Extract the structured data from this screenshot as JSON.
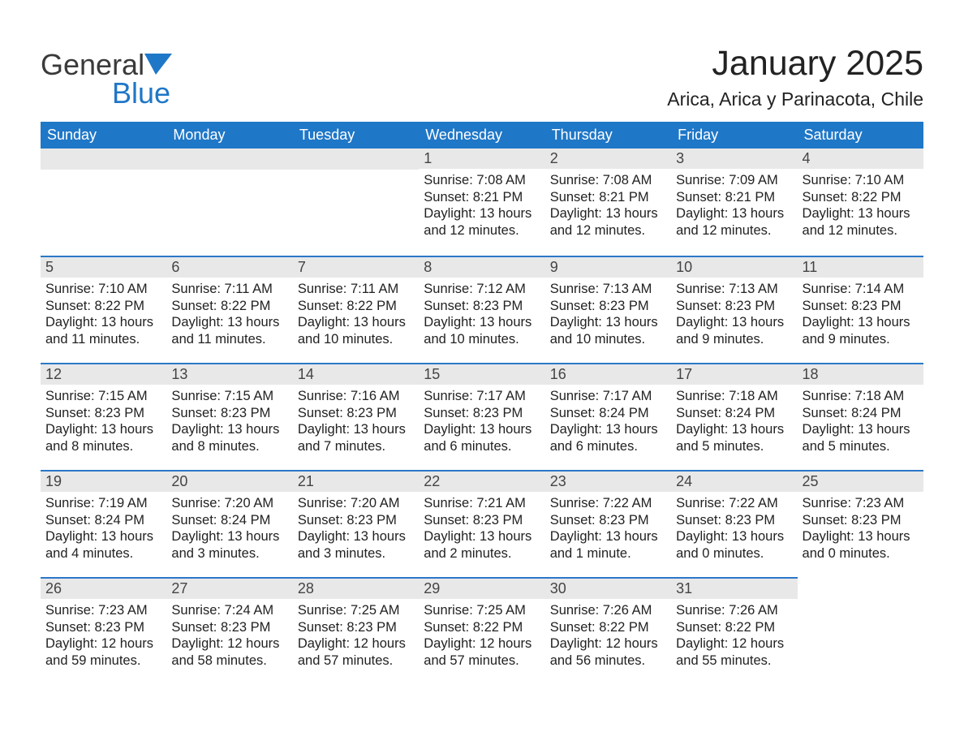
{
  "logo": {
    "main": "General",
    "sub": "Blue"
  },
  "title": "January 2025",
  "location": "Arica, Arica y Parinacota, Chile",
  "colors": {
    "header_blue": "#1f77c7",
    "accent_blue": "#2b78c8",
    "gray_band": "#e8e8e8",
    "divider_gray": "#cfcfcf",
    "text": "#2a2a2a",
    "logo_dark": "#3a3a3a",
    "logo_blue": "#1f77c7",
    "page_bg": "#ffffff"
  },
  "typography": {
    "font_family": "Arial, Helvetica, sans-serif",
    "title_fontsize": 43,
    "location_fontsize": 23,
    "header_fontsize": 18,
    "daynum_fontsize": 18,
    "body_fontsize": 16.5
  },
  "day_headers": [
    "Sunday",
    "Monday",
    "Tuesday",
    "Wednesday",
    "Thursday",
    "Friday",
    "Saturday"
  ],
  "weeks": [
    [
      null,
      null,
      null,
      {
        "n": "1",
        "sunrise": "Sunrise: 7:08 AM",
        "sunset": "Sunset: 8:21 PM",
        "daylight": "Daylight: 13 hours and 12 minutes."
      },
      {
        "n": "2",
        "sunrise": "Sunrise: 7:08 AM",
        "sunset": "Sunset: 8:21 PM",
        "daylight": "Daylight: 13 hours and 12 minutes."
      },
      {
        "n": "3",
        "sunrise": "Sunrise: 7:09 AM",
        "sunset": "Sunset: 8:21 PM",
        "daylight": "Daylight: 13 hours and 12 minutes."
      },
      {
        "n": "4",
        "sunrise": "Sunrise: 7:10 AM",
        "sunset": "Sunset: 8:22 PM",
        "daylight": "Daylight: 13 hours and 12 minutes."
      }
    ],
    [
      {
        "n": "5",
        "sunrise": "Sunrise: 7:10 AM",
        "sunset": "Sunset: 8:22 PM",
        "daylight": "Daylight: 13 hours and 11 minutes."
      },
      {
        "n": "6",
        "sunrise": "Sunrise: 7:11 AM",
        "sunset": "Sunset: 8:22 PM",
        "daylight": "Daylight: 13 hours and 11 minutes."
      },
      {
        "n": "7",
        "sunrise": "Sunrise: 7:11 AM",
        "sunset": "Sunset: 8:22 PM",
        "daylight": "Daylight: 13 hours and 10 minutes."
      },
      {
        "n": "8",
        "sunrise": "Sunrise: 7:12 AM",
        "sunset": "Sunset: 8:23 PM",
        "daylight": "Daylight: 13 hours and 10 minutes."
      },
      {
        "n": "9",
        "sunrise": "Sunrise: 7:13 AM",
        "sunset": "Sunset: 8:23 PM",
        "daylight": "Daylight: 13 hours and 10 minutes."
      },
      {
        "n": "10",
        "sunrise": "Sunrise: 7:13 AM",
        "sunset": "Sunset: 8:23 PM",
        "daylight": "Daylight: 13 hours and 9 minutes."
      },
      {
        "n": "11",
        "sunrise": "Sunrise: 7:14 AM",
        "sunset": "Sunset: 8:23 PM",
        "daylight": "Daylight: 13 hours and 9 minutes."
      }
    ],
    [
      {
        "n": "12",
        "sunrise": "Sunrise: 7:15 AM",
        "sunset": "Sunset: 8:23 PM",
        "daylight": "Daylight: 13 hours and 8 minutes."
      },
      {
        "n": "13",
        "sunrise": "Sunrise: 7:15 AM",
        "sunset": "Sunset: 8:23 PM",
        "daylight": "Daylight: 13 hours and 8 minutes."
      },
      {
        "n": "14",
        "sunrise": "Sunrise: 7:16 AM",
        "sunset": "Sunset: 8:23 PM",
        "daylight": "Daylight: 13 hours and 7 minutes."
      },
      {
        "n": "15",
        "sunrise": "Sunrise: 7:17 AM",
        "sunset": "Sunset: 8:23 PM",
        "daylight": "Daylight: 13 hours and 6 minutes."
      },
      {
        "n": "16",
        "sunrise": "Sunrise: 7:17 AM",
        "sunset": "Sunset: 8:24 PM",
        "daylight": "Daylight: 13 hours and 6 minutes."
      },
      {
        "n": "17",
        "sunrise": "Sunrise: 7:18 AM",
        "sunset": "Sunset: 8:24 PM",
        "daylight": "Daylight: 13 hours and 5 minutes."
      },
      {
        "n": "18",
        "sunrise": "Sunrise: 7:18 AM",
        "sunset": "Sunset: 8:24 PM",
        "daylight": "Daylight: 13 hours and 5 minutes."
      }
    ],
    [
      {
        "n": "19",
        "sunrise": "Sunrise: 7:19 AM",
        "sunset": "Sunset: 8:24 PM",
        "daylight": "Daylight: 13 hours and 4 minutes."
      },
      {
        "n": "20",
        "sunrise": "Sunrise: 7:20 AM",
        "sunset": "Sunset: 8:24 PM",
        "daylight": "Daylight: 13 hours and 3 minutes."
      },
      {
        "n": "21",
        "sunrise": "Sunrise: 7:20 AM",
        "sunset": "Sunset: 8:23 PM",
        "daylight": "Daylight: 13 hours and 3 minutes."
      },
      {
        "n": "22",
        "sunrise": "Sunrise: 7:21 AM",
        "sunset": "Sunset: 8:23 PM",
        "daylight": "Daylight: 13 hours and 2 minutes."
      },
      {
        "n": "23",
        "sunrise": "Sunrise: 7:22 AM",
        "sunset": "Sunset: 8:23 PM",
        "daylight": "Daylight: 13 hours and 1 minute."
      },
      {
        "n": "24",
        "sunrise": "Sunrise: 7:22 AM",
        "sunset": "Sunset: 8:23 PM",
        "daylight": "Daylight: 13 hours and 0 minutes."
      },
      {
        "n": "25",
        "sunrise": "Sunrise: 7:23 AM",
        "sunset": "Sunset: 8:23 PM",
        "daylight": "Daylight: 13 hours and 0 minutes."
      }
    ],
    [
      {
        "n": "26",
        "sunrise": "Sunrise: 7:23 AM",
        "sunset": "Sunset: 8:23 PM",
        "daylight": "Daylight: 12 hours and 59 minutes."
      },
      {
        "n": "27",
        "sunrise": "Sunrise: 7:24 AM",
        "sunset": "Sunset: 8:23 PM",
        "daylight": "Daylight: 12 hours and 58 minutes."
      },
      {
        "n": "28",
        "sunrise": "Sunrise: 7:25 AM",
        "sunset": "Sunset: 8:23 PM",
        "daylight": "Daylight: 12 hours and 57 minutes."
      },
      {
        "n": "29",
        "sunrise": "Sunrise: 7:25 AM",
        "sunset": "Sunset: 8:22 PM",
        "daylight": "Daylight: 12 hours and 57 minutes."
      },
      {
        "n": "30",
        "sunrise": "Sunrise: 7:26 AM",
        "sunset": "Sunset: 8:22 PM",
        "daylight": "Daylight: 12 hours and 56 minutes."
      },
      {
        "n": "31",
        "sunrise": "Sunrise: 7:26 AM",
        "sunset": "Sunset: 8:22 PM",
        "daylight": "Daylight: 12 hours and 55 minutes."
      },
      null
    ]
  ]
}
